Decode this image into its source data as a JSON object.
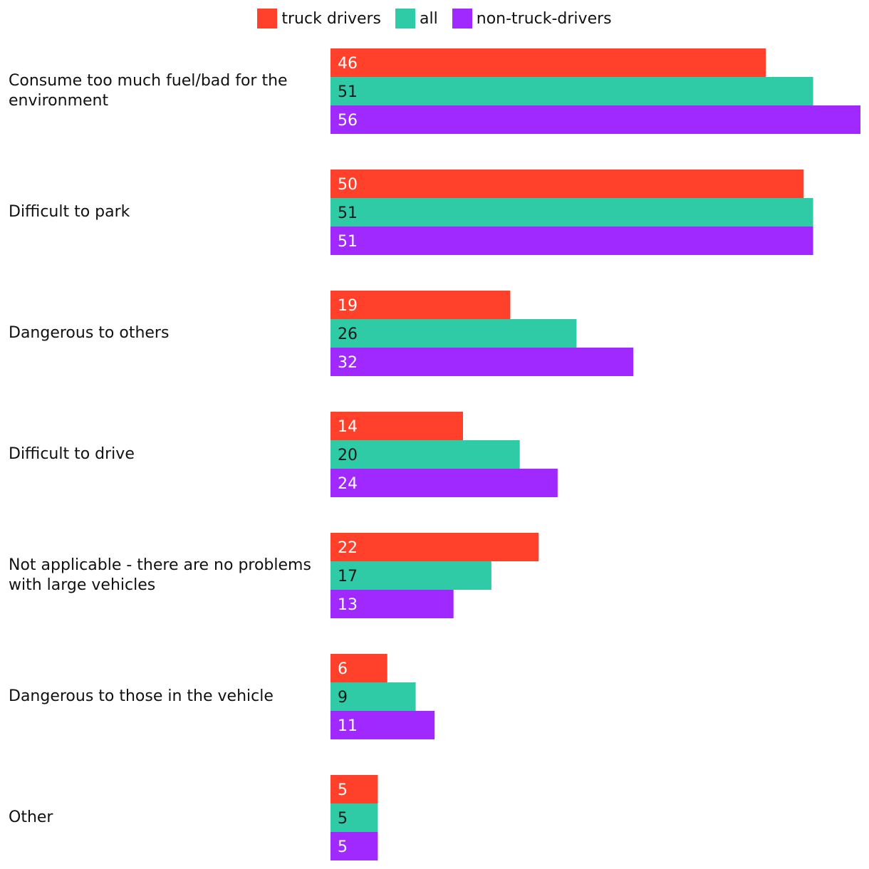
{
  "chart_data": {
    "type": "bar",
    "orientation": "horizontal",
    "categories": [
      "Consume too much fuel/bad for the environment",
      "Difficult to park",
      "Dangerous to others",
      "Difficult to drive",
      "Not applicable - there are no problems with large vehicles",
      "Dangerous to those in the vehicle",
      "Other"
    ],
    "series": [
      {
        "name": "truck drivers",
        "color": "#ff412c",
        "label_color": "#ffffff",
        "values": [
          46,
          50,
          19,
          14,
          22,
          6,
          5
        ]
      },
      {
        "name": "all",
        "color": "#2fcaa6",
        "label_color": "#1a1a1a",
        "values": [
          51,
          51,
          26,
          20,
          17,
          9,
          5
        ]
      },
      {
        "name": "non-truck-drivers",
        "color": "#9f29ff",
        "label_color": "#ffffff",
        "values": [
          56,
          51,
          32,
          24,
          13,
          11,
          5
        ]
      }
    ],
    "xlim": [
      0,
      56
    ],
    "grid": false,
    "legend_position": "top-center",
    "title": "",
    "xlabel": "",
    "ylabel": ""
  }
}
